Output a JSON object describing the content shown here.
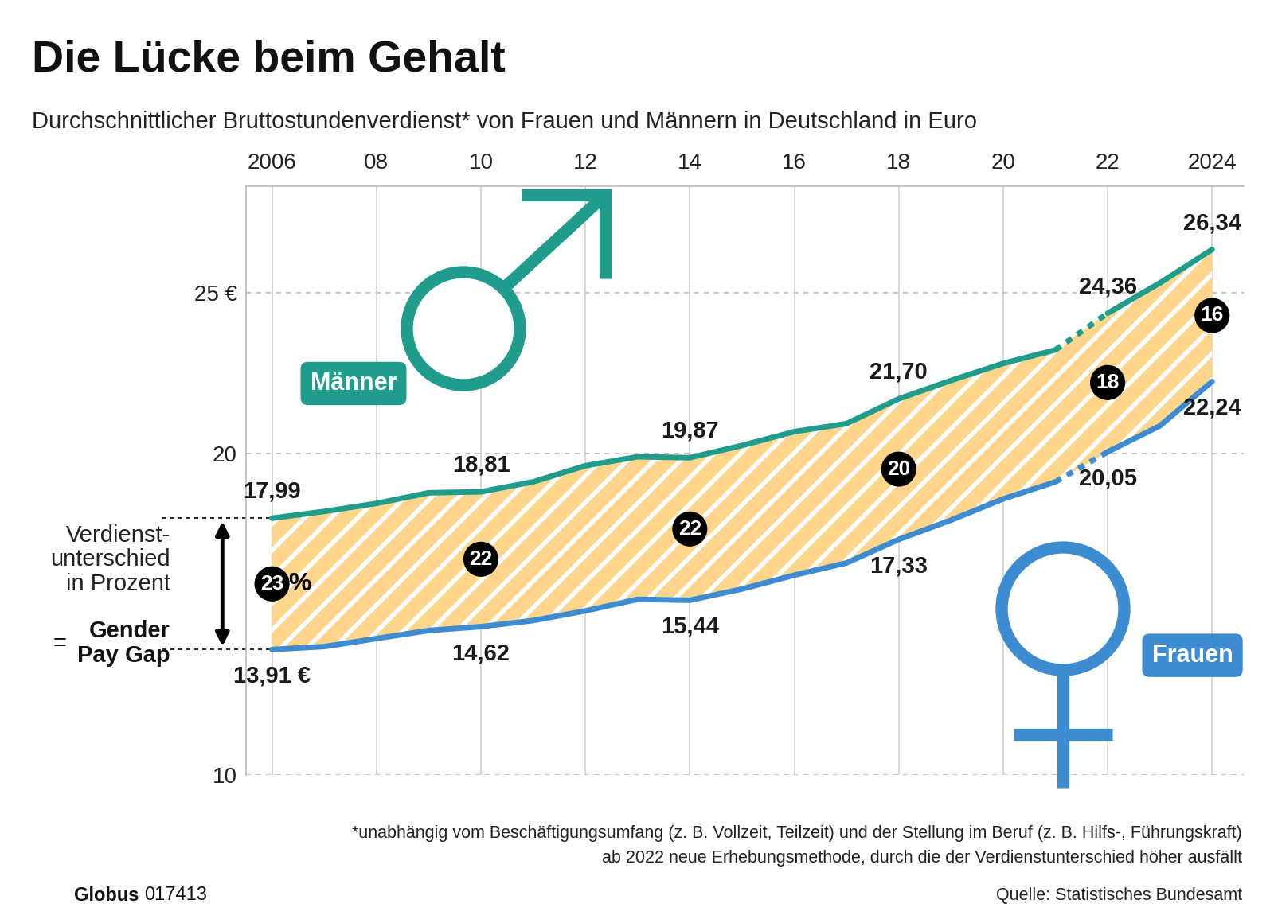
{
  "chart_data": {
    "type": "line",
    "title": "Die Lücke beim Gehalt",
    "subtitle": "Durchschnittlicher Bruttostundenverdienst* von Frauen und Männern in Deutschland in Euro",
    "x": [
      2006,
      2007,
      2008,
      2009,
      2010,
      2011,
      2012,
      2013,
      2014,
      2015,
      2016,
      2017,
      2018,
      2019,
      2020,
      2021,
      2022,
      2023,
      2024
    ],
    "xlim": [
      2005.5,
      2024.6
    ],
    "xticks": [
      2006,
      {
        "value": 2008,
        "label": "08"
      },
      {
        "value": 2010,
        "label": "10"
      },
      {
        "value": 2012,
        "label": "12"
      },
      {
        "value": 2014,
        "label": "14"
      },
      {
        "value": 2016,
        "label": "16"
      },
      {
        "value": 2018,
        "label": "18"
      },
      {
        "value": 2020,
        "label": "20"
      },
      {
        "value": 2022,
        "label": "22"
      },
      2024
    ],
    "ylim": [
      10,
      28.3
    ],
    "yticks": [
      10,
      20,
      {
        "value": 25,
        "label": "25 €"
      }
    ],
    "grid": true,
    "data_labels": true,
    "series": [
      {
        "name": "Männer",
        "color": "#1f9c8b",
        "values": [
          17.99,
          18.2,
          18.45,
          18.78,
          18.81,
          19.12,
          19.62,
          19.9,
          19.87,
          20.25,
          20.68,
          20.93,
          21.7,
          22.27,
          22.8,
          23.22,
          24.36,
          25.3,
          26.34
        ],
        "value_labels": [
          "17,99",
          null,
          null,
          null,
          "18,81",
          null,
          null,
          null,
          "19,87",
          null,
          null,
          null,
          "21,70",
          null,
          null,
          null,
          "24,36",
          null,
          "26,34"
        ]
      },
      {
        "name": "Frauen",
        "color": "#3d8bd0",
        "values": [
          13.91,
          14.0,
          14.25,
          14.5,
          14.62,
          14.81,
          15.11,
          15.47,
          15.44,
          15.79,
          16.22,
          16.6,
          17.33,
          17.93,
          18.59,
          19.12,
          20.05,
          20.86,
          22.24
        ],
        "value_labels": [
          "13,91 €",
          null,
          null,
          null,
          "14,62",
          null,
          null,
          null,
          "15,44",
          null,
          null,
          null,
          "17,33",
          null,
          null,
          null,
          "20,05",
          null,
          "22,24"
        ]
      }
    ],
    "method_change_x": 2022,
    "gap": {
      "x": [
        2006,
        2010,
        2014,
        2018,
        2022,
        2024
      ],
      "values": [
        23,
        22,
        22,
        20,
        18,
        16
      ],
      "unit": "%"
    },
    "gap_label": "Verdienst-\nunterschied\nin Prozent",
    "gap_label_equals": "=",
    "gap_label_name": "Gender\nPay Gap",
    "footnotes": [
      "*unabhängig vom Beschäftigungsumfang (z. B. Vollzeit, Teilzeit) und der Stellung im Beruf (z. B. Hilfs-, Führungskraft)",
      "ab 2022 neue Erhebungsmethode, durch die der Verdienstunterschied höher ausfällt"
    ],
    "source": "Quelle: Statistisches Bundesamt",
    "brand": "Globus",
    "brand_id": "017413"
  }
}
